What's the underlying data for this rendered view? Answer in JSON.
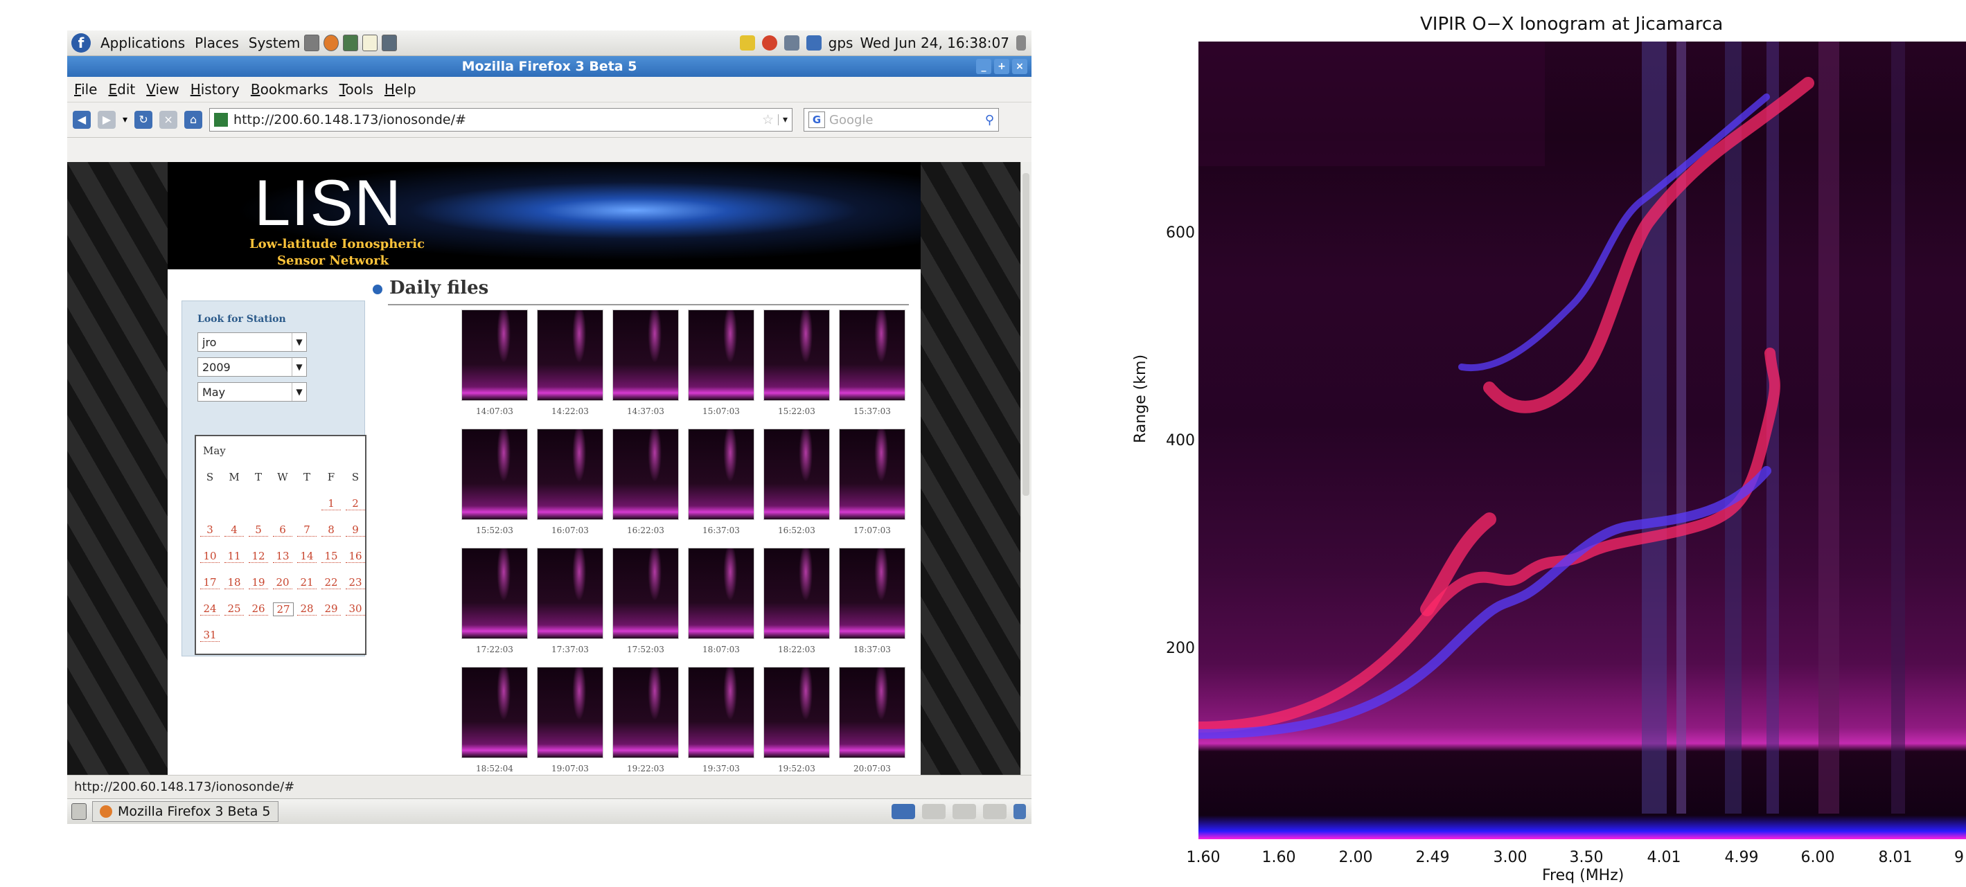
{
  "desktop": {
    "top_panel": {
      "menus": [
        "Applications",
        "Places",
        "System"
      ],
      "tray": {
        "gps_label": "gps",
        "clock": "Wed Jun 24, 16:38:07"
      }
    },
    "window": {
      "title": "Mozilla Firefox 3 Beta 5",
      "menus": [
        "File",
        "Edit",
        "View",
        "History",
        "Bookmarks",
        "Tools",
        "Help"
      ],
      "url": "http://200.60.148.173/ionosonde/#",
      "search_placeholder": "Google",
      "status_text": "http://200.60.148.173/ionosonde/#"
    },
    "taskbar": {
      "window_button": "Mozilla Firefox 3 Beta 5"
    }
  },
  "site": {
    "logo": "LISN",
    "tagline_line1": "Low-latitude Ionospheric",
    "tagline_line2": "Sensor Network",
    "search": {
      "title": "Look for Station",
      "station": "jro",
      "year": "2009",
      "month": "May"
    },
    "calendar": {
      "month": "May",
      "weekdays": [
        "S",
        "M",
        "T",
        "W",
        "T",
        "F",
        "S"
      ],
      "selected_day": "27",
      "first_weekday_index": 5,
      "days": [
        "1",
        "2",
        "3",
        "4",
        "5",
        "6",
        "7",
        "8",
        "9",
        "10",
        "11",
        "12",
        "13",
        "14",
        "15",
        "16",
        "17",
        "18",
        "19",
        "20",
        "21",
        "22",
        "23",
        "24",
        "25",
        "26",
        "27",
        "28",
        "29",
        "30",
        "31"
      ]
    },
    "daily_files": {
      "heading": "Daily files",
      "times": [
        "14:07:03",
        "14:22:03",
        "14:37:03",
        "15:07:03",
        "15:22:03",
        "15:37:03",
        "15:52:03",
        "16:07:03",
        "16:22:03",
        "16:37:03",
        "16:52:03",
        "17:07:03",
        "17:22:03",
        "17:37:03",
        "17:52:03",
        "18:07:03",
        "18:22:03",
        "18:37:03",
        "18:52:04",
        "19:07:03",
        "19:22:03",
        "19:37:03",
        "19:52:03",
        "20:07:03"
      ]
    }
  },
  "ionogram": {
    "title": "VIPIR O−X Ionogram at Jicamarca",
    "y_label": "Range (km)",
    "x_label": "Freq (MHz)",
    "y_ticks": [
      "600",
      "400",
      "200"
    ],
    "x_ticks": [
      "1.60",
      "1.60",
      "2.00",
      "2.49",
      "3.00",
      "3.50",
      "4.01",
      "4.99",
      "6.00",
      "8.01",
      "9"
    ],
    "colors": {
      "o_mode": "#ff2a6a",
      "x_mode": "#5a3cff",
      "background": "#1d021a"
    }
  }
}
